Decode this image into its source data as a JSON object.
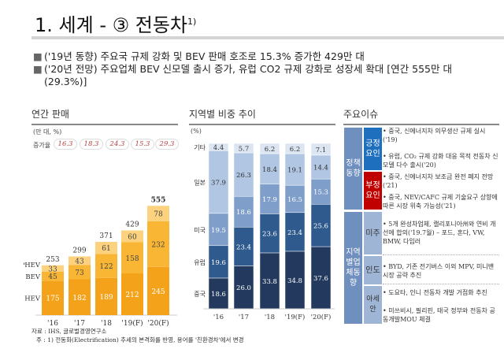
{
  "title": "1. 세계 - ③ 전동차",
  "title_sup": "1)",
  "bullets": [
    "('19년 동향) 주요국 규제 강화 및 BEV 판매 호조로 15.3% 증가한 429만 대",
    "('20년 전망) 주요업체 BEV 신모델 출시 증가, 유럽 CO2 규제 강화로 성장세 확대 [연간 555만 대 (29.3%)]"
  ],
  "bullet_icon": "square-bullet-icon",
  "left_panel": {
    "heading": "연간 판매",
    "unit": "(만 대, %)",
    "growth_label": "증가율",
    "growth": [
      "16.3",
      "18.3",
      "24.3",
      "15.3",
      "29.3"
    ]
  },
  "middle_panel": {
    "heading": "지역별 비중 추이",
    "unit": "(%)"
  },
  "chart_data": [
    {
      "type": "bar",
      "stacked": true,
      "categories": [
        "'16",
        "'17",
        "'18",
        "'19(F)",
        "'20(F)"
      ],
      "series": [
        {
          "name": "HEV",
          "values": [
            175,
            182,
            189,
            212,
            245
          ],
          "color": "#f5a21b"
        },
        {
          "name": "BEV",
          "values": [
            45,
            73,
            122,
            158,
            232
          ],
          "color": "#f9b534"
        },
        {
          "name": "PHEV",
          "values": [
            33,
            43,
            61,
            60,
            78
          ],
          "color": "#fcd27e"
        }
      ],
      "totals": [
        "253",
        "299",
        "371",
        "429",
        "555"
      ]
    },
    {
      "type": "bar",
      "stacked": true,
      "categories": [
        "'16",
        "'17",
        "'18",
        "'19(F)",
        "'20(F)"
      ],
      "series": [
        {
          "name": "중국",
          "values": [
            18.6,
            26.0,
            33.8,
            34.8,
            37.6
          ],
          "color": "#233a5e"
        },
        {
          "name": "유럽",
          "values": [
            19.6,
            23.4,
            23.6,
            23.4,
            25.6
          ],
          "color": "#2f5a8e"
        },
        {
          "name": "미국",
          "values": [
            19.5,
            18.6,
            17.9,
            16.5,
            15.3
          ],
          "color": "#7f9fca"
        },
        {
          "name": "일본",
          "values": [
            37.9,
            26.3,
            18.4,
            19.1,
            14.4
          ],
          "color": "#b0c6e2"
        },
        {
          "name": "기타",
          "values": [
            4.4,
            5.7,
            6.2,
            6.2,
            7.1
          ],
          "color": "#dce6f2"
        }
      ]
    }
  ],
  "right_panel": {
    "heading": "주요이슈",
    "group1": "정책동향",
    "group2": "지역별업체동향",
    "pos": "긍정요인",
    "neg": "부정요인",
    "us": "미주",
    "in": "인도",
    "asean": "아세안",
    "pos_items": [
      "• 중국, 신에너지차 의무생산 규제 실시 ('19)",
      "• 유럽, CO₂ 규제 강화 대응 목적 전동차 신모델 다수 출시('20)"
    ],
    "neg_items": [
      "• 중국, 신에너지차 보조금 완전 폐지 전망 ('21)",
      "• 중국, NEV/CAFC 규제 기술요구 상향에 따른 시장 위축 가능성('21)"
    ],
    "us_items": [
      "• 5개 완성차업체, 캘리포니아州와 연비 개선에 합의('19.7월) – 포드, 혼다, VW, BMW, 다임러"
    ],
    "in_items": [
      "• BYD, 기존 전기버스 이외 MPV, 미니밴 시장 공략 추진"
    ],
    "asean_items": [
      "• 도요타, 인니 전동차 개발 거점화 추진",
      "• 미쓰비시, 필리핀, 태국 정부와 전동차 공동개발MOU 체결"
    ],
    "colors": {
      "group": "#6f8fbf",
      "pos": "#1f6fbf",
      "neg": "#c00000",
      "region": "#9fb5d6"
    }
  },
  "footnotes": [
    "자료 : IHS, 글로벌경영연구소",
    "주 : 1) 전동화(Electrification) 추세의 본격화를 반영, 용어를 '친환경차'에서 변경"
  ]
}
